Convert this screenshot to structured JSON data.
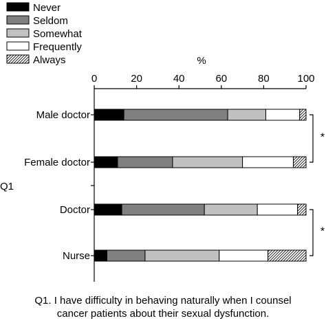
{
  "chart_data": {
    "type": "bar",
    "orientation": "horizontal",
    "stacked": true,
    "percent_label": "%",
    "xlim": [
      0,
      100
    ],
    "x_ticks": [
      0,
      20,
      40,
      60,
      80,
      100
    ],
    "group_label": "Q1",
    "categories": [
      "Male doctor",
      "Female doctor",
      "Doctor",
      "Nurse"
    ],
    "legend_position": "top-left",
    "significance_marks": [
      {
        "between": [
          "Male doctor",
          "Female doctor"
        ],
        "symbol": "*"
      },
      {
        "between": [
          "Doctor",
          "Nurse"
        ],
        "symbol": "*"
      }
    ],
    "series": [
      {
        "name": "Never",
        "fill": "#000000",
        "values": [
          14,
          11,
          13,
          6
        ]
      },
      {
        "name": "Seldom",
        "fill": "#808080",
        "values": [
          49,
          26,
          39,
          18
        ]
      },
      {
        "name": "Somewhat",
        "fill": "#c0c0c0",
        "values": [
          18,
          33,
          25,
          35
        ]
      },
      {
        "name": "Frequently",
        "fill": "#ffffff",
        "values": [
          16,
          24,
          19,
          23
        ]
      },
      {
        "name": "Always",
        "fill": "hatch",
        "values": [
          3,
          6,
          4,
          18
        ]
      }
    ],
    "caption_lines": [
      "Q1. I have difficulty in behaving naturally when I counsel",
      "cancer patients about their sexual dysfunction."
    ]
  }
}
